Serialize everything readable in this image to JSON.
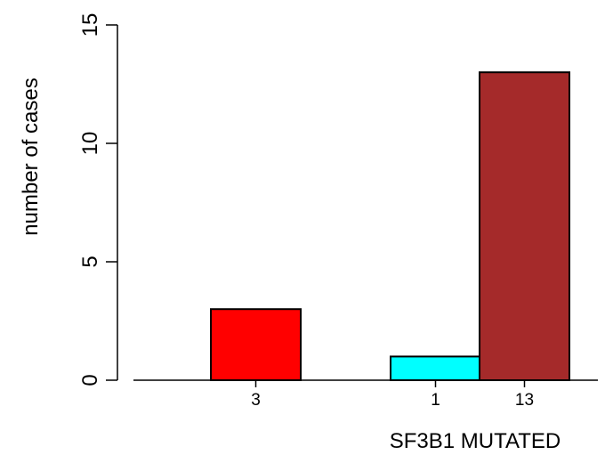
{
  "chart_data": {
    "type": "bar",
    "title": "",
    "xlabel": "SF3B1 MUTATED",
    "ylabel": "number of cases",
    "ylim": [
      0,
      15
    ],
    "yticks": [
      0,
      5,
      10,
      15
    ],
    "grid": false,
    "bars": [
      {
        "value": 3,
        "label": "3",
        "color": "#FF0000"
      },
      {
        "value": 1,
        "label": "1",
        "color": "#00FFFF"
      },
      {
        "value": 13,
        "label": "13",
        "color": "#A52A2A"
      }
    ]
  }
}
